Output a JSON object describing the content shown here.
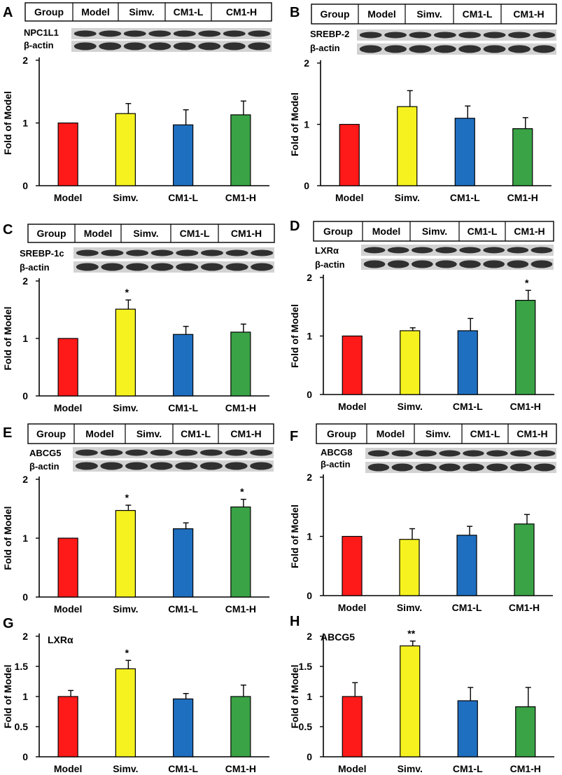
{
  "figure": {
    "group_header": "Group",
    "reference_label": "β-actin",
    "y_label": "Fold of Model"
  },
  "colors": {
    "Model": "#ff1a1a",
    "Simv.": "#f6f21f",
    "CM1-L": "#1f6fc1",
    "CM1-H": "#3aa346",
    "axis": "#000000",
    "blot_band": "#1e1e1e",
    "blot_bg": "#d2d2d2"
  },
  "chart_data": [
    {
      "panel": "A",
      "type": "bar",
      "protein": "NPC1L1",
      "title": "",
      "xlabel": "",
      "ylabel": "Fold of Model",
      "ylim": [
        0,
        2
      ],
      "yticks": [
        0,
        1,
        2
      ],
      "ytick_labels": [
        "0",
        "1",
        "2"
      ],
      "categories": [
        "Model",
        "Simv.",
        "CM1-L",
        "CM1-H"
      ],
      "values": [
        1.0,
        1.15,
        0.97,
        1.13
      ],
      "errors": [
        0,
        0.16,
        0.24,
        0.22
      ],
      "significance": [
        "",
        "",
        "",
        ""
      ],
      "blot_header": [
        "Group",
        "Model",
        "Simv.",
        "CM1-L",
        "CM1-H"
      ],
      "blot_rows": [
        "NPC1L1",
        "β-actin"
      ]
    },
    {
      "panel": "B",
      "type": "bar",
      "protein": "SREBP-2",
      "title": "",
      "xlabel": "",
      "ylabel": "Fold of Model",
      "ylim": [
        0,
        2
      ],
      "yticks": [
        0,
        1,
        2
      ],
      "ytick_labels": [
        "0",
        "1",
        "2"
      ],
      "categories": [
        "Model",
        "Simv.",
        "CM1-L",
        "CM1-H"
      ],
      "values": [
        1.0,
        1.29,
        1.1,
        0.93
      ],
      "errors": [
        0,
        0.26,
        0.2,
        0.18
      ],
      "significance": [
        "",
        "",
        "",
        ""
      ],
      "blot_header": [
        "Group",
        "Model",
        "Simv.",
        "CM1-L",
        "CM1-H"
      ],
      "blot_rows": [
        "SREBP-2",
        "β-actin"
      ]
    },
    {
      "panel": "C",
      "type": "bar",
      "protein": "SREBP-1c",
      "title": "",
      "xlabel": "",
      "ylabel": "Fold of Model",
      "ylim": [
        0,
        2
      ],
      "yticks": [
        0,
        1,
        2
      ],
      "ytick_labels": [
        "0",
        "1",
        "2"
      ],
      "categories": [
        "Model",
        "Simv.",
        "CM1-L",
        "CM1-H"
      ],
      "values": [
        1.0,
        1.51,
        1.07,
        1.11
      ],
      "errors": [
        0,
        0.16,
        0.14,
        0.14
      ],
      "significance": [
        "",
        "*",
        "",
        ""
      ],
      "blot_header": [
        "Group",
        "Model",
        "Simv.",
        "CM1-L",
        "CM1-H"
      ],
      "blot_rows": [
        "SREBP-1c",
        "β-actin"
      ]
    },
    {
      "panel": "D",
      "type": "bar",
      "protein": "LXRα",
      "title": "",
      "xlabel": "",
      "ylabel": "Fold of Model",
      "ylim": [
        0,
        2
      ],
      "yticks": [
        0,
        1,
        2
      ],
      "ytick_labels": [
        "0",
        "1",
        "2"
      ],
      "categories": [
        "Model",
        "Simv.",
        "CM1-L",
        "CM1-H"
      ],
      "values": [
        1.0,
        1.09,
        1.09,
        1.61
      ],
      "errors": [
        0,
        0.05,
        0.21,
        0.17
      ],
      "significance": [
        "",
        "",
        "",
        "*"
      ],
      "blot_header": [
        "Group",
        "Model",
        "Simv.",
        "CM1-L",
        "CM1-H"
      ],
      "blot_rows": [
        "LXRα",
        "β-actin"
      ]
    },
    {
      "panel": "E",
      "type": "bar",
      "protein": "ABCG5",
      "title": "",
      "xlabel": "",
      "ylabel": "Fold of Model",
      "ylim": [
        0,
        2
      ],
      "yticks": [
        0,
        1,
        2
      ],
      "ytick_labels": [
        "0",
        "1",
        "2"
      ],
      "categories": [
        "Model",
        "Simv.",
        "CM1-L",
        "CM1-H"
      ],
      "values": [
        1.0,
        1.47,
        1.16,
        1.53
      ],
      "errors": [
        0,
        0.09,
        0.1,
        0.13
      ],
      "significance": [
        "",
        "*",
        "",
        "*"
      ],
      "blot_header": [
        "Group",
        "Model",
        "Simv.",
        "CM1-L",
        "CM1-H"
      ],
      "blot_rows": [
        "ABCG5",
        "β-actin"
      ]
    },
    {
      "panel": "F",
      "type": "bar",
      "protein": "ABCG8",
      "title": "",
      "xlabel": "",
      "ylabel": "Fold of Model",
      "ylim": [
        0,
        2
      ],
      "yticks": [
        0,
        1,
        2
      ],
      "ytick_labels": [
        "0",
        "1",
        "2"
      ],
      "categories": [
        "Model",
        "Simv.",
        "CM1-L",
        "CM1-H"
      ],
      "values": [
        1.0,
        0.95,
        1.02,
        1.21
      ],
      "errors": [
        0,
        0.18,
        0.15,
        0.16
      ],
      "significance": [
        "",
        "",
        "",
        ""
      ],
      "blot_header": [
        "Group",
        "Model",
        "Simv.",
        "CM1-L",
        "CM1-H"
      ],
      "blot_rows": [
        "ABCG8",
        "β-actin"
      ]
    },
    {
      "panel": "G",
      "type": "bar",
      "protein": "LXRα",
      "title": "LXRα",
      "xlabel": "",
      "ylabel": "Fold of Model",
      "ylim": [
        0,
        2
      ],
      "yticks": [
        0,
        0.5,
        1,
        1.5,
        2
      ],
      "ytick_labels": [
        "0",
        "0.5",
        "1",
        "1.5",
        "2"
      ],
      "categories": [
        "Model",
        "Simv.",
        "CM1-L",
        "CM1-H"
      ],
      "values": [
        1.0,
        1.46,
        0.96,
        1.0
      ],
      "errors": [
        0.1,
        0.14,
        0.09,
        0.19
      ],
      "significance": [
        "",
        "*",
        "",
        ""
      ],
      "blot_header": [],
      "blot_rows": []
    },
    {
      "panel": "H",
      "type": "bar",
      "protein": "ABCG5",
      "title": "ABCG5",
      "xlabel": "",
      "ylabel": "Fold of Model",
      "ylim": [
        0,
        2
      ],
      "yticks": [
        0,
        0.5,
        1,
        1.5,
        2
      ],
      "ytick_labels": [
        "0",
        "0.5",
        "1",
        "1.5",
        "2"
      ],
      "categories": [
        "Model",
        "Simv.",
        "CM1-L",
        "CM1-H"
      ],
      "values": [
        1.0,
        1.84,
        0.93,
        0.83
      ],
      "errors": [
        0.23,
        0.08,
        0.22,
        0.32
      ],
      "significance": [
        "",
        "**",
        "",
        ""
      ],
      "blot_header": [],
      "blot_rows": []
    }
  ]
}
